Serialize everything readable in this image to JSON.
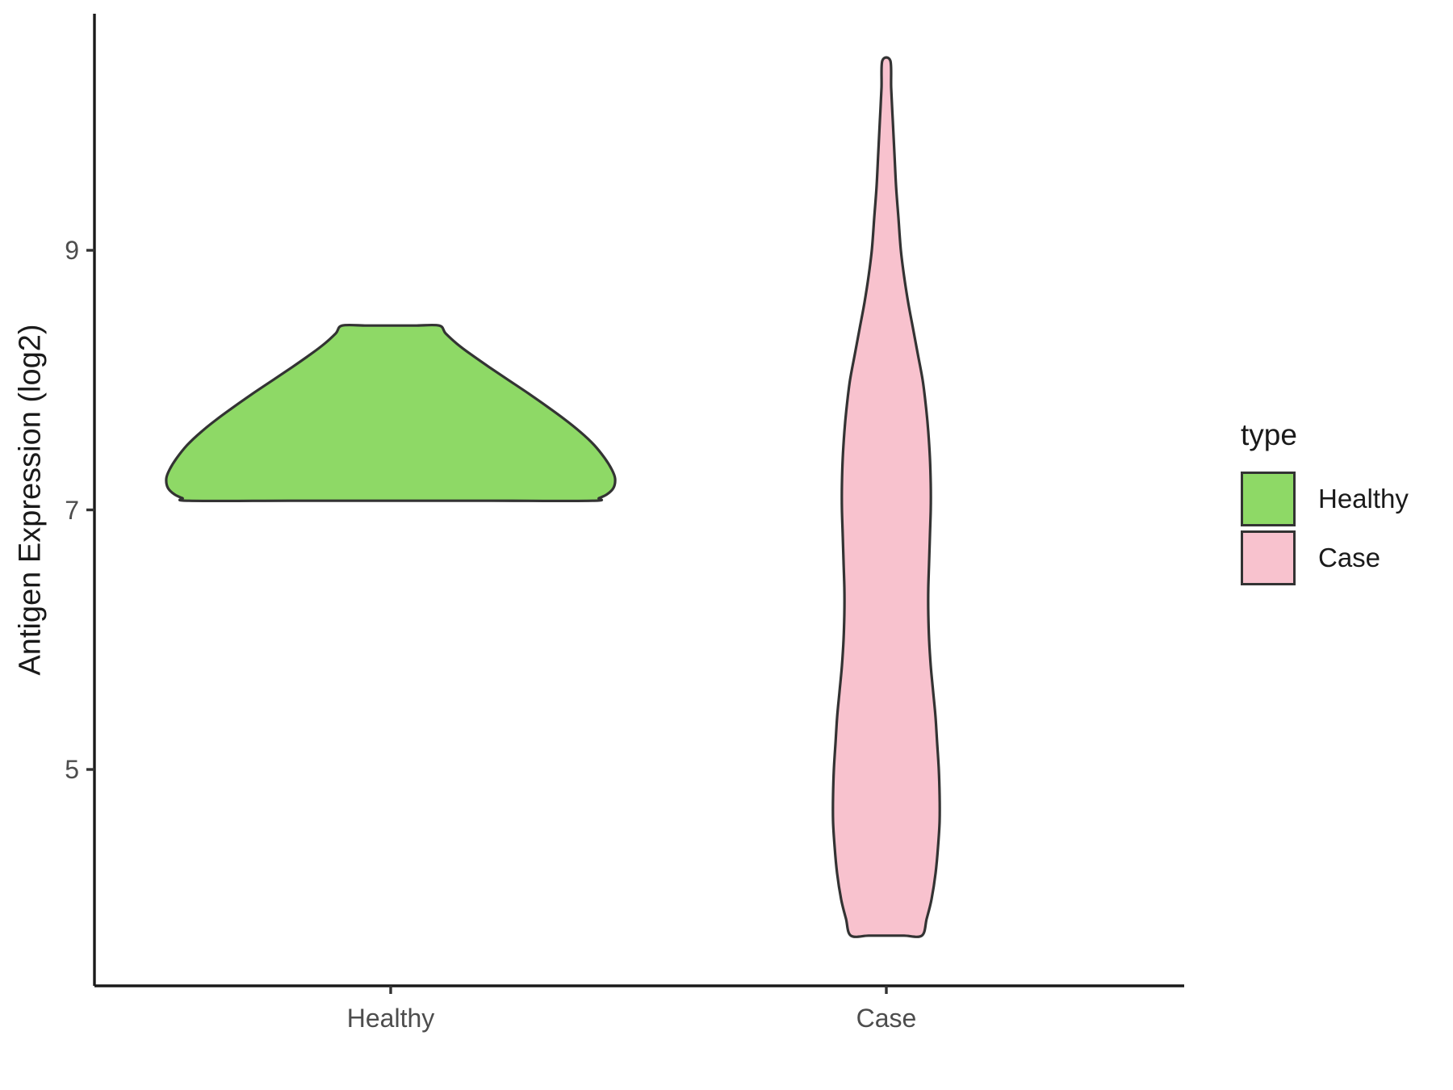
{
  "chart_data": {
    "type": "violin",
    "title": "",
    "xlabel": "",
    "ylabel": "Antigen Expression (log2)",
    "categories": [
      "Healthy",
      "Case"
    ],
    "y_ticks": [
      5,
      7,
      9
    ],
    "y_axis_range": [
      3.3,
      10.8
    ],
    "grid": "off",
    "legend": {
      "title": "type",
      "position": "right",
      "entries": [
        {
          "label": "Healthy",
          "color": "#8ED966"
        },
        {
          "label": "Case",
          "color": "#F8C2CE"
        }
      ]
    },
    "colors": {
      "axis_line": "#1a1a1a",
      "tick_mark": "#333333",
      "axis_text": "#4d4d4d",
      "violin_outline": "#333333"
    },
    "series": [
      {
        "name": "Healthy",
        "fill": "#8ED966",
        "outline": "#333333",
        "min_value": 7.07,
        "max_value": 8.42,
        "peak_density_value": 7.24,
        "shape_note": "wide plateau violin: flat top at 8.42, flares outward, widest near 7.24, flat base at 7.07",
        "profile_value_halfwidth": [
          [
            8.42,
            60
          ],
          [
            8.36,
            68
          ],
          [
            8.28,
            82
          ],
          [
            8.2,
            99
          ],
          [
            8.1,
            122
          ],
          [
            8.0,
            146
          ],
          [
            7.9,
            170
          ],
          [
            7.8,
            193
          ],
          [
            7.7,
            215
          ],
          [
            7.6,
            235
          ],
          [
            7.5,
            252
          ],
          [
            7.4,
            265
          ],
          [
            7.31,
            274
          ],
          [
            7.24,
            278
          ],
          [
            7.17,
            276
          ],
          [
            7.12,
            268
          ],
          [
            7.09,
            258
          ],
          [
            7.07,
            250
          ]
        ]
      },
      {
        "name": "Case",
        "fill": "#F8C2CE",
        "outline": "#333333",
        "min_value": 3.72,
        "max_value": 10.46,
        "peak_density_value": 4.7,
        "shape_note": "tall narrow violin: thin spike tip at 10.46 widening into a tube, slight waist near 6.3, widest near 4.7, flat base at 3.72",
        "profile_value_halfwidth": [
          [
            10.46,
            5
          ],
          [
            10.25,
            6
          ],
          [
            10.0,
            8
          ],
          [
            9.75,
            10
          ],
          [
            9.5,
            12
          ],
          [
            9.25,
            15
          ],
          [
            9.0,
            18
          ],
          [
            8.8,
            22
          ],
          [
            8.6,
            27
          ],
          [
            8.4,
            33
          ],
          [
            8.2,
            39
          ],
          [
            8.0,
            45
          ],
          [
            7.8,
            49
          ],
          [
            7.6,
            52
          ],
          [
            7.4,
            54
          ],
          [
            7.2,
            55
          ],
          [
            7.0,
            55
          ],
          [
            6.8,
            54
          ],
          [
            6.6,
            53
          ],
          [
            6.4,
            52
          ],
          [
            6.2,
            52
          ],
          [
            6.0,
            53
          ],
          [
            5.8,
            55
          ],
          [
            5.6,
            58
          ],
          [
            5.4,
            61
          ],
          [
            5.2,
            63
          ],
          [
            5.0,
            65
          ],
          [
            4.8,
            66
          ],
          [
            4.6,
            66
          ],
          [
            4.4,
            64
          ],
          [
            4.2,
            61
          ],
          [
            4.0,
            56
          ],
          [
            3.85,
            50
          ],
          [
            3.72,
            44
          ]
        ]
      }
    ]
  }
}
